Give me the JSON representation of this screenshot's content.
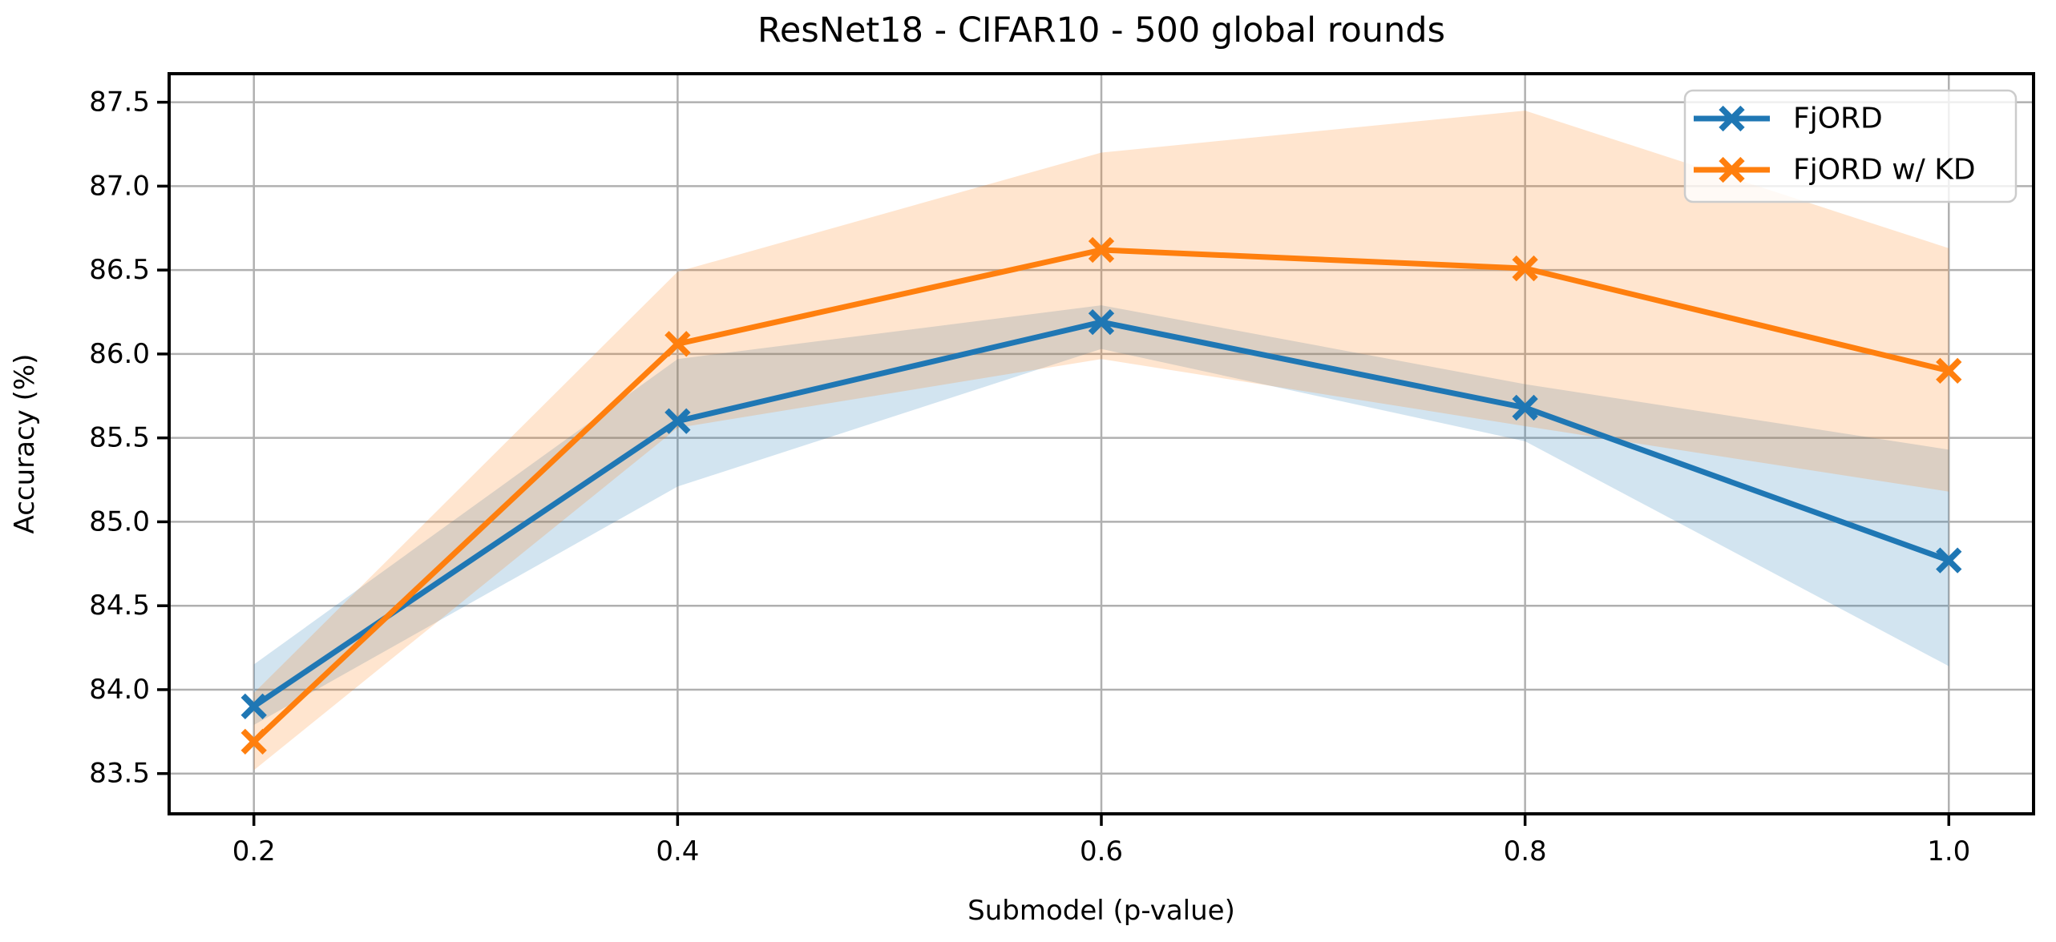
{
  "chart_data": {
    "type": "line",
    "title": "ResNet18 - CIFAR10 - 500 global rounds",
    "xlabel": "Submodel (p-value)",
    "ylabel": "Accuracy (%)",
    "x": [
      0.2,
      0.4,
      0.6,
      0.8,
      1.0
    ],
    "xtick_labels": [
      "0.2",
      "0.4",
      "0.6",
      "0.8",
      "1.0"
    ],
    "ytick_labels": [
      "83.5",
      "84.0",
      "84.5",
      "85.0",
      "85.5",
      "86.0",
      "86.5",
      "87.0",
      "87.5"
    ],
    "xlim": [
      0.16,
      1.04
    ],
    "ylim": [
      83.26,
      87.67
    ],
    "grid": true,
    "legend_position": "upper right",
    "band_opacity": 0.2,
    "colors": {
      "grid": "#b0b0b0",
      "spine": "#000000",
      "legend_border": "#cccccc"
    },
    "series": [
      {
        "name": "FjORD",
        "color": "#1f77b4",
        "marker": "x",
        "values": [
          83.9,
          85.6,
          86.19,
          85.68,
          84.77
        ],
        "band_upper": [
          84.15,
          85.97,
          86.29,
          85.82,
          85.43
        ],
        "band_lower": [
          83.79,
          85.21,
          86.03,
          85.48,
          84.14
        ]
      },
      {
        "name": "FjORD w/ KD",
        "color": "#ff7f0e",
        "marker": "x",
        "values": [
          83.69,
          86.06,
          86.62,
          86.51,
          85.9
        ],
        "band_upper": [
          83.98,
          86.49,
          87.2,
          87.45,
          86.63
        ],
        "band_lower": [
          83.52,
          85.56,
          85.97,
          85.57,
          85.18
        ]
      }
    ]
  }
}
